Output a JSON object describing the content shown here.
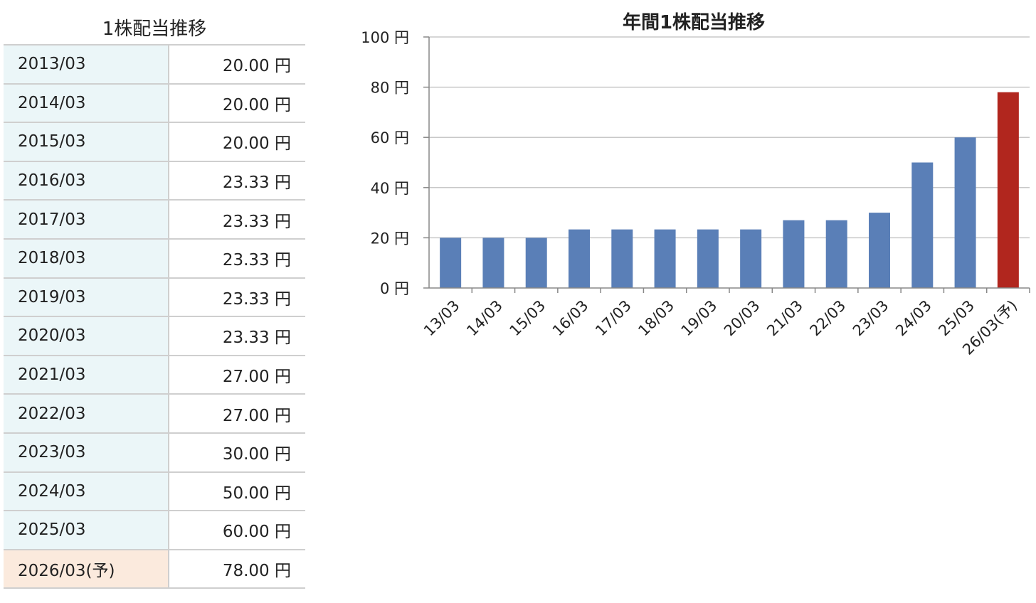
{
  "table": {
    "title": "1株配当推移",
    "rows": [
      {
        "period": "2013/03",
        "amount": "20.00 円",
        "forecast": false
      },
      {
        "period": "2014/03",
        "amount": "20.00 円",
        "forecast": false
      },
      {
        "period": "2015/03",
        "amount": "20.00 円",
        "forecast": false
      },
      {
        "period": "2016/03",
        "amount": "23.33 円",
        "forecast": false
      },
      {
        "period": "2017/03",
        "amount": "23.33 円",
        "forecast": false
      },
      {
        "period": "2018/03",
        "amount": "23.33 円",
        "forecast": false
      },
      {
        "period": "2019/03",
        "amount": "23.33 円",
        "forecast": false
      },
      {
        "period": "2020/03",
        "amount": "23.33 円",
        "forecast": false
      },
      {
        "period": "2021/03",
        "amount": "27.00 円",
        "forecast": false
      },
      {
        "period": "2022/03",
        "amount": "27.00 円",
        "forecast": false
      },
      {
        "period": "2023/03",
        "amount": "30.00 円",
        "forecast": false
      },
      {
        "period": "2024/03",
        "amount": "50.00 円",
        "forecast": false
      },
      {
        "period": "2025/03",
        "amount": "60.00 円",
        "forecast": false
      },
      {
        "period": "2026/03(予)",
        "amount": "78.00 円",
        "forecast": true
      }
    ]
  },
  "chart_data": {
    "type": "bar",
    "title": "年間1株配当推移",
    "xlabel": "",
    "ylabel": "",
    "categories": [
      "13/03",
      "14/03",
      "15/03",
      "16/03",
      "17/03",
      "18/03",
      "19/03",
      "20/03",
      "21/03",
      "22/03",
      "23/03",
      "24/03",
      "25/03",
      "26/03(予)"
    ],
    "values": [
      20,
      20,
      20,
      23.33,
      23.33,
      23.33,
      23.33,
      23.33,
      27,
      27,
      30,
      50,
      60,
      78
    ],
    "forecast_index": 13,
    "ylim": [
      0,
      100
    ],
    "yticks": [
      0,
      20,
      40,
      60,
      80,
      100
    ],
    "ytick_labels": [
      "0 円",
      "20 円",
      "40 円",
      "60 円",
      "80 円",
      "100 円"
    ],
    "grid": true,
    "colors": {
      "actual": "#5a7fb7",
      "forecast": "#b1261e",
      "grid": "#c8c8c8",
      "axis": "#888888"
    }
  }
}
